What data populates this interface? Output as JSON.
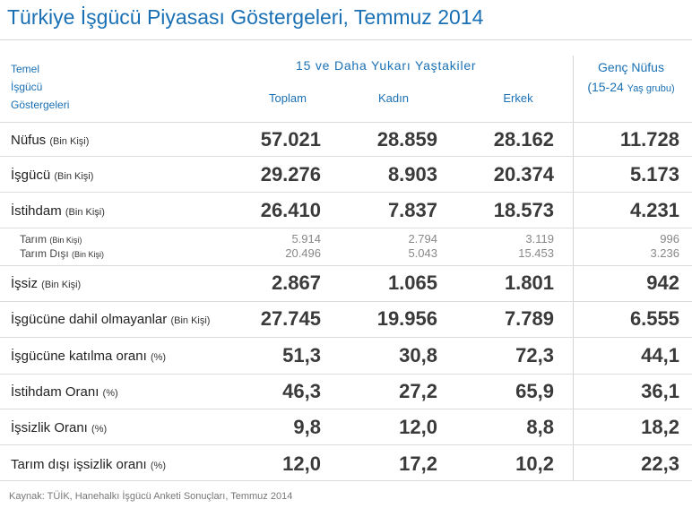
{
  "title": "Türkiye İşgücü Piyasası Göstergeleri, Temmuz 2014",
  "header": {
    "temel": [
      "Temel",
      "İşgücü",
      "Göstergeleri"
    ],
    "group": "15 ve Daha Yukarı Yaştakiler",
    "columns": [
      "Toplam",
      "Kadın",
      "Erkek"
    ],
    "genc_line1": "Genç Nüfus",
    "genc_line2_main": "(15-24",
    "genc_line2_small": "Yaş grubu)"
  },
  "rows": [
    {
      "label": "Nüfus",
      "unit": "(Bin Kişi)",
      "values": [
        "57.021",
        "28.859",
        "28.162",
        "11.728"
      ]
    },
    {
      "label": "İşgücü",
      "unit": "(Bin Kişi)",
      "values": [
        "29.276",
        "8.903",
        "20.374",
        "5.173"
      ]
    },
    {
      "label": "İstihdam",
      "unit": "(Bin Kişi)",
      "values": [
        "26.410",
        "7.837",
        "18.573",
        "4.231"
      ]
    },
    {
      "label": "Tarım",
      "unit": "(Bin Kişi)",
      "values": [
        "5.914",
        "2.794",
        "3.119",
        "996"
      ]
    },
    {
      "label": "Tarım Dışı",
      "unit": "(Bin Kişi)",
      "values": [
        "20.496",
        "5.043",
        "15.453",
        "3.236"
      ]
    },
    {
      "label": "İşsiz",
      "unit": "(Bin Kişi)",
      "values": [
        "2.867",
        "1.065",
        "1.801",
        "942"
      ]
    },
    {
      "label": "İşgücüne dahil olmayanlar",
      "unit": "(Bin Kişi)",
      "values": [
        "27.745",
        "19.956",
        "7.789",
        "6.555"
      ]
    },
    {
      "label": "İşgücüne katılma oranı",
      "unit": "(%)",
      "values": [
        "51,3",
        "30,8",
        "72,3",
        "44,1"
      ]
    },
    {
      "label": "İstihdam Oranı",
      "unit": "(%)",
      "values": [
        "46,3",
        "27,2",
        "65,9",
        "36,1"
      ]
    },
    {
      "label": "İşsizlik Oranı",
      "unit": "(%)",
      "values": [
        "9,8",
        "12,0",
        "8,8",
        "18,2"
      ]
    },
    {
      "label": "Tarım dışı işsizlik oranı",
      "unit": "(%)",
      "values": [
        "12,0",
        "17,2",
        "10,2",
        "22,3"
      ]
    }
  ],
  "source": "Kaynak: TÜİK, Hanehalkı İşgücü Anketi Sonuçları, Temmuz 2014",
  "colors": {
    "accent": "#1a70b4",
    "rule": "#dcdcdc"
  }
}
